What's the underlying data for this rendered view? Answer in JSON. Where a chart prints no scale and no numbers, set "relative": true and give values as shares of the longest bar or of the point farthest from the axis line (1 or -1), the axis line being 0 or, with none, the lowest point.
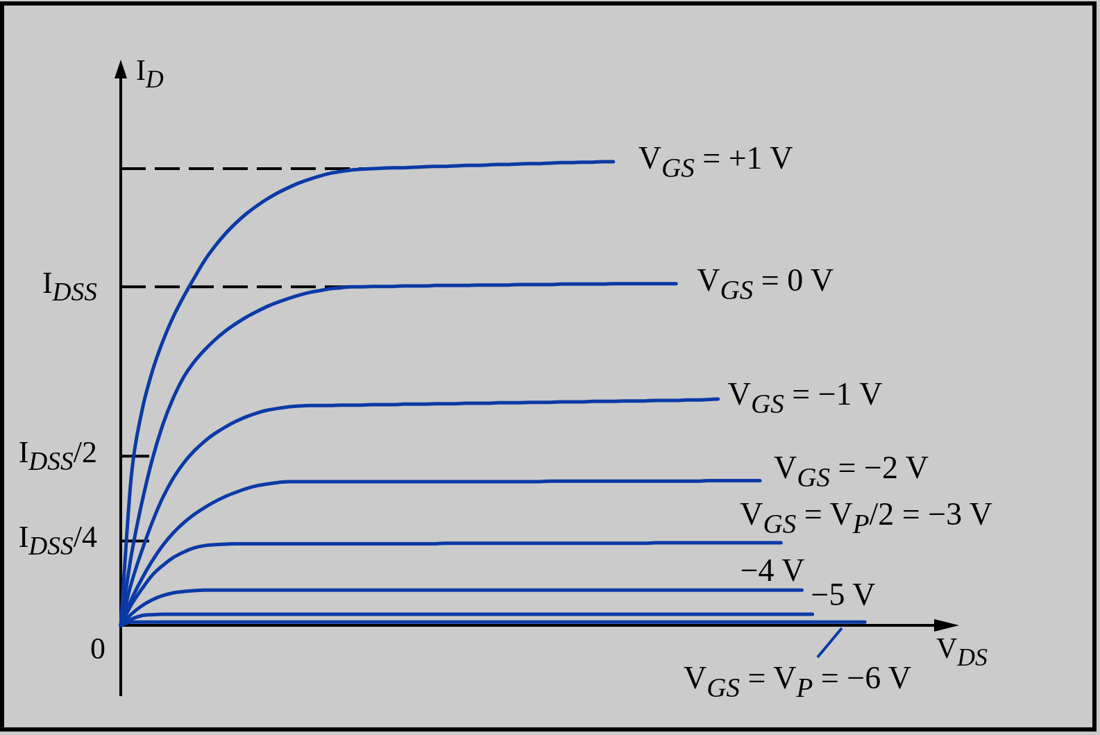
{
  "chart_data": {
    "type": "line",
    "relative": true,
    "xlabel": "V$_{DS}$",
    "ylabel": "I$_{D}$",
    "categories": [
      null,
      null,
      null,
      null,
      null,
      null,
      null,
      null,
      null,
      null,
      null,
      null,
      null,
      null,
      null,
      null,
      null,
      null,
      null,
      null,
      null,
      null,
      null,
      null,
      null,
      null,
      null,
      null,
      null,
      null,
      null,
      null,
      null,
      null,
      null,
      null,
      null,
      null,
      null,
      null,
      null,
      null,
      null,
      null,
      null,
      null,
      null,
      null,
      null,
      null,
      null,
      null,
      null,
      null,
      null,
      null,
      null,
      null,
      null,
      null,
      null,
      null,
      null,
      null,
      null,
      null,
      null,
      null,
      null,
      null,
      null,
      null,
      null,
      null,
      null,
      null,
      null,
      null,
      null,
      null,
      null
    ],
    "ref_lines": [
      {
        "axis": "y",
        "value": 0.985,
        "color": "#000000",
        "line_style": "dashed"
      },
      {
        "axis": "y",
        "value": 0.73,
        "label": "I$_{DSS}$",
        "color": "#000000",
        "line_style": "dashed"
      },
      {
        "axis": "y",
        "value": 0.365,
        "label": "I$_{DSS}$/2",
        "color": "#000000"
      },
      {
        "axis": "y",
        "value": 0.182,
        "label": "I$_{DSS}$/4",
        "color": "#000000"
      }
    ],
    "annotations": [
      "0"
    ],
    "series": [
      {
        "name": "V$_{GS}$ = +1 V",
        "color": "#0b3aa6",
        "values": [
          0,
          0.32,
          0.46,
          0.547,
          0.612,
          0.665,
          0.709,
          0.749,
          0.787,
          0.818,
          0.845,
          0.868,
          0.888,
          0.905,
          0.92,
          0.933,
          0.944,
          0.954,
          0.962,
          0.969,
          0.975,
          0.979,
          0.982,
          0.984,
          0.985,
          0.986,
          0.987,
          0.987,
          0.988,
          0.989,
          0.99,
          0.99,
          0.991,
          0.992,
          0.992,
          0.993,
          0.994,
          0.994,
          0.995,
          0.996,
          0.996,
          0.997,
          0.998,
          0.998,
          0.999,
          0.999,
          1,
          1,
          null,
          null,
          null,
          null,
          null,
          null,
          null,
          null,
          null,
          null,
          null,
          null,
          null,
          null,
          null,
          null,
          null,
          null,
          null,
          null,
          null,
          null,
          null,
          null,
          null,
          null,
          null,
          null,
          null,
          null,
          null,
          null,
          null
        ]
      },
      {
        "name": "V$_{GS}$ = 0 V",
        "color": "#0b3aa6",
        "values": [
          0,
          0.15,
          0.263,
          0.357,
          0.432,
          0.49,
          0.535,
          0.568,
          0.594,
          0.616,
          0.635,
          0.651,
          0.665,
          0.677,
          0.688,
          0.697,
          0.705,
          0.712,
          0.718,
          0.722,
          0.726,
          0.728,
          0.73,
          0.73,
          0.731,
          0.731,
          0.731,
          0.732,
          0.732,
          0.732,
          0.733,
          0.733,
          0.733,
          0.733,
          0.734,
          0.734,
          0.734,
          0.734,
          0.735,
          0.735,
          0.735,
          0.735,
          0.736,
          0.736,
          0.736,
          0.736,
          0.736,
          0.737,
          0.737,
          0.737,
          0.737,
          0.737,
          0.737,
          0.737,
          null,
          null,
          null,
          null,
          null,
          null,
          null,
          null,
          null,
          null,
          null,
          null,
          null,
          null,
          null,
          null,
          null,
          null,
          null,
          null,
          null,
          null,
          null,
          null,
          null,
          null,
          null
        ]
      },
      {
        "name": "V$_{GS}$ = −1 V",
        "color": "#0b3aa6",
        "values": [
          0,
          0.09,
          0.16,
          0.222,
          0.275,
          0.317,
          0.35,
          0.376,
          0.397,
          0.414,
          0.428,
          0.44,
          0.45,
          0.458,
          0.464,
          0.468,
          0.471,
          0.473,
          0.474,
          0.474,
          0.474,
          0.475,
          0.475,
          0.475,
          0.476,
          0.476,
          0.476,
          0.477,
          0.477,
          0.477,
          0.478,
          0.478,
          0.478,
          0.479,
          0.479,
          0.479,
          0.48,
          0.48,
          0.48,
          0.481,
          0.481,
          0.481,
          0.482,
          0.482,
          0.482,
          0.483,
          0.483,
          0.483,
          0.484,
          0.484,
          0.484,
          0.485,
          0.485,
          0.485,
          0.486,
          0.486,
          0.487,
          0.488,
          null,
          null,
          null,
          null,
          null,
          null,
          null,
          null,
          null,
          null,
          null,
          null,
          null,
          null,
          null,
          null,
          null,
          null,
          null,
          null,
          null,
          null,
          null
        ]
      },
      {
        "name": "V$_{GS}$ = −2 V",
        "color": "#0b3aa6",
        "values": [
          0,
          0.055,
          0.1,
          0.139,
          0.172,
          0.199,
          0.221,
          0.239,
          0.254,
          0.267,
          0.278,
          0.287,
          0.295,
          0.301,
          0.305,
          0.308,
          0.31,
          0.31,
          0.31,
          0.31,
          0.31,
          0.31,
          0.31,
          0.31,
          0.31,
          0.31,
          0.31,
          0.31,
          0.31,
          0.31,
          0.31,
          0.31,
          0.31,
          0.31,
          0.31,
          0.31,
          0.31,
          0.31,
          0.31,
          0.31,
          0.31,
          0.311,
          0.311,
          0.311,
          0.311,
          0.311,
          0.311,
          0.311,
          0.311,
          0.311,
          0.311,
          0.311,
          0.311,
          0.311,
          0.311,
          0.311,
          0.312,
          0.312,
          0.312,
          0.312,
          0.312,
          0.312,
          null,
          null,
          null,
          null,
          null,
          null,
          null,
          null,
          null,
          null,
          null,
          null,
          null,
          null,
          null,
          null,
          null,
          null,
          null
        ]
      },
      {
        "name": "V$_{GS}$ = V$_{P}$/2 = −3 V",
        "color": "#0b3aa6",
        "values": [
          0,
          0.044,
          0.078,
          0.108,
          0.129,
          0.146,
          0.158,
          0.167,
          0.172,
          0.174,
          0.175,
          0.176,
          0.176,
          0.176,
          0.176,
          0.176,
          0.176,
          0.176,
          0.176,
          0.176,
          0.176,
          0.176,
          0.176,
          0.176,
          0.176,
          0.176,
          0.176,
          0.176,
          0.176,
          0.176,
          0.176,
          0.177,
          0.177,
          0.177,
          0.177,
          0.177,
          0.177,
          0.177,
          0.177,
          0.177,
          0.177,
          0.177,
          0.177,
          0.177,
          0.177,
          0.177,
          0.177,
          0.177,
          0.177,
          0.177,
          0.177,
          0.178,
          0.178,
          0.178,
          0.178,
          0.178,
          0.178,
          0.178,
          0.178,
          0.178,
          0.178,
          0.178,
          0.178,
          0.178,
          null,
          null,
          null,
          null,
          null,
          null,
          null,
          null,
          null,
          null,
          null,
          null,
          null,
          null,
          null,
          null,
          null
        ]
      },
      {
        "name": "−4 V",
        "color": "#0b3aa6",
        "values": [
          0,
          0.024,
          0.042,
          0.055,
          0.064,
          0.07,
          0.073,
          0.075,
          0.076,
          0.076,
          0.076,
          0.076,
          0.076,
          0.076,
          0.076,
          0.076,
          0.076,
          0.076,
          0.076,
          0.076,
          0.076,
          0.076,
          0.076,
          0.076,
          0.076,
          0.076,
          0.076,
          0.076,
          0.076,
          0.076,
          0.076,
          0.076,
          0.076,
          0.076,
          0.076,
          0.076,
          0.076,
          0.076,
          0.076,
          0.076,
          0.076,
          0.076,
          0.076,
          0.076,
          0.076,
          0.076,
          0.076,
          0.076,
          0.076,
          0.076,
          0.076,
          0.076,
          0.076,
          0.076,
          0.076,
          0.076,
          0.076,
          0.076,
          0.076,
          0.076,
          0.076,
          0.076,
          0.076,
          0.076,
          0.076,
          0.076,
          null,
          null,
          null,
          null,
          null,
          null,
          null,
          null,
          null,
          null,
          null,
          null,
          null,
          null,
          null
        ]
      },
      {
        "name": "−5 V",
        "color": "#0b3aa6",
        "values": [
          0,
          0.013,
          0.021,
          0.023,
          0.024,
          0.024,
          0.024,
          0.024,
          0.024,
          0.024,
          0.024,
          0.024,
          0.024,
          0.024,
          0.024,
          0.024,
          0.024,
          0.024,
          0.024,
          0.024,
          0.024,
          0.024,
          0.024,
          0.024,
          0.024,
          0.024,
          0.024,
          0.024,
          0.024,
          0.024,
          0.024,
          0.024,
          0.024,
          0.024,
          0.024,
          0.024,
          0.024,
          0.024,
          0.024,
          0.024,
          0.024,
          0.024,
          0.024,
          0.024,
          0.024,
          0.024,
          0.024,
          0.024,
          0.024,
          0.024,
          0.024,
          0.024,
          0.024,
          0.024,
          0.024,
          0.024,
          0.024,
          0.024,
          0.024,
          0.024,
          0.024,
          0.024,
          0.024,
          0.024,
          0.024,
          0.024,
          0.024,
          null,
          null,
          null,
          null,
          null,
          null,
          null,
          null,
          null,
          null,
          null,
          null,
          null,
          null
        ]
      },
      {
        "name": "V$_{GS}$ = V$_{P}$ = −6 V",
        "color": "#0b3aa6",
        "values": [
          0,
          0.007,
          0.007,
          0.007,
          0.007,
          0.007,
          0.007,
          0.007,
          0.007,
          0.007,
          0.007,
          0.007,
          0.007,
          0.007,
          0.007,
          0.007,
          0.007,
          0.007,
          0.007,
          0.007,
          0.007,
          0.007,
          0.007,
          0.007,
          0.007,
          0.007,
          0.007,
          0.007,
          0.007,
          0.007,
          0.007,
          0.007,
          0.007,
          0.007,
          0.007,
          0.007,
          0.007,
          0.007,
          0.007,
          0.007,
          0.007,
          0.007,
          0.007,
          0.007,
          0.007,
          0.007,
          0.007,
          0.007,
          0.007,
          0.007,
          0.007,
          0.007,
          0.007,
          0.007,
          0.007,
          0.007,
          0.007,
          0.007,
          0.007,
          0.007,
          0.007,
          0.007,
          0.007,
          0.007,
          0.007,
          0.007,
          0.007,
          0.007,
          0.007,
          0.007,
          0.007,
          0.007,
          null,
          null,
          null,
          null,
          null,
          null,
          null,
          null,
          null
        ]
      }
    ]
  }
}
